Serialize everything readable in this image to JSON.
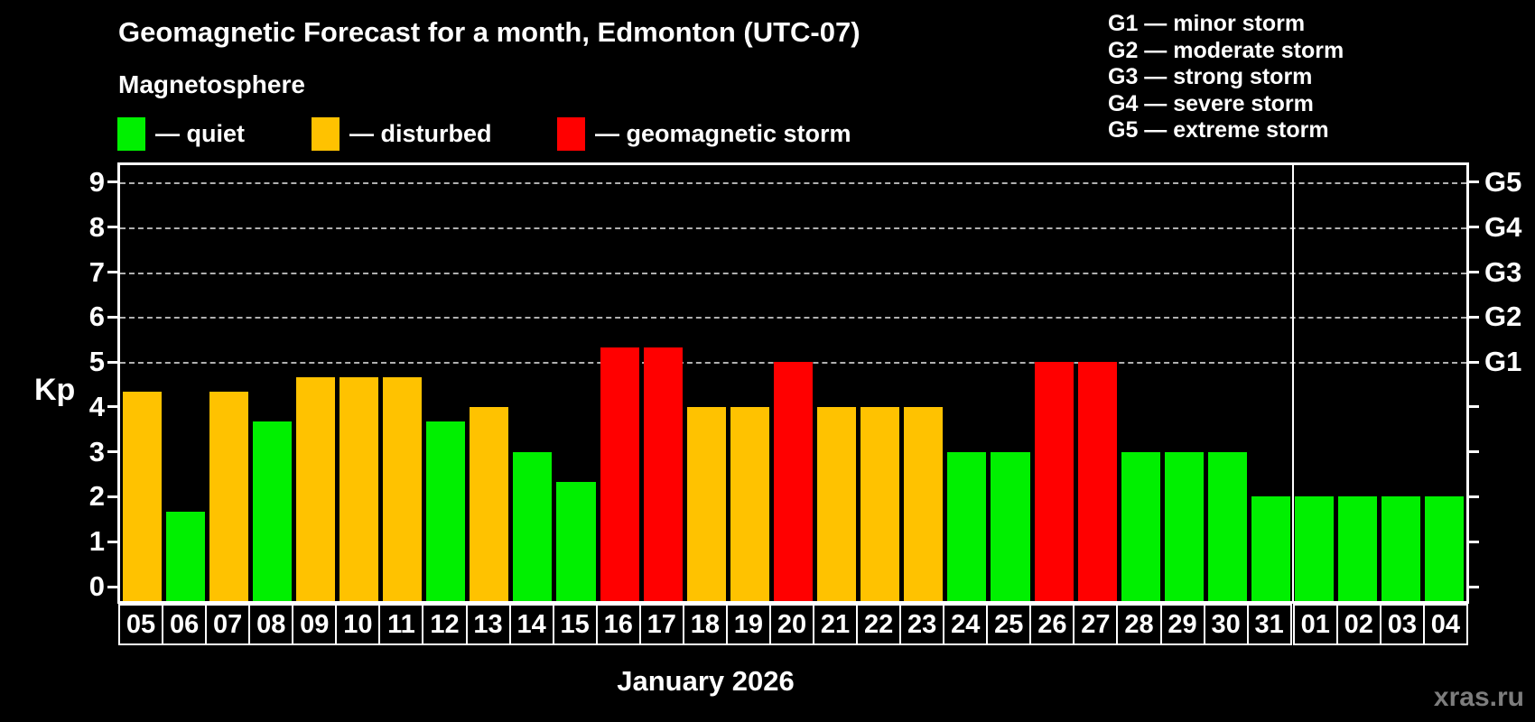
{
  "header": {
    "title": "Geomagnetic Forecast for a month, Edmonton (UTC-07)",
    "subtitle": "Magnetosphere"
  },
  "legend": {
    "items": [
      {
        "label": "— quiet",
        "status": "quiet"
      },
      {
        "label": "— disturbed",
        "status": "disturbed"
      },
      {
        "label": "— geomagnetic storm",
        "status": "storm"
      }
    ]
  },
  "storm_scale_legend": {
    "items": [
      "G1 — minor storm",
      "G2 — moderate storm",
      "G3 — strong storm",
      "G4 — severe storm",
      "G5 — extreme storm"
    ]
  },
  "colors": {
    "quiet": "#00f000",
    "disturbed": "#ffc200",
    "storm": "#ff0000",
    "background": "#000000",
    "axis": "#ffffff",
    "gridline": "#b0b0b0",
    "watermark": "#7d7d7d"
  },
  "chart_data": {
    "type": "bar",
    "title": "Geomagnetic Forecast for a month, Edmonton (UTC-07)",
    "ylabel": "Kp",
    "xlabel": "January 2026",
    "ylim": [
      0,
      9
    ],
    "yticks": [
      0,
      1,
      2,
      3,
      4,
      5,
      6,
      7,
      8,
      9
    ],
    "grid": "dashed horizontal lines at Kp 5-9 only",
    "right_axis": [
      {
        "kp": 5,
        "label": "G1"
      },
      {
        "kp": 6,
        "label": "G2"
      },
      {
        "kp": 7,
        "label": "G3"
      },
      {
        "kp": 8,
        "label": "G4"
      },
      {
        "kp": 9,
        "label": "G5"
      }
    ],
    "categories": [
      "05",
      "06",
      "07",
      "08",
      "09",
      "10",
      "11",
      "12",
      "13",
      "14",
      "15",
      "16",
      "17",
      "18",
      "19",
      "20",
      "21",
      "22",
      "23",
      "24",
      "25",
      "26",
      "27",
      "28",
      "29",
      "30",
      "31",
      "01",
      "02",
      "03",
      "04"
    ],
    "values": [
      4.33,
      1.67,
      4.33,
      3.67,
      4.67,
      4.67,
      4.67,
      3.67,
      4,
      3,
      2.33,
      5.33,
      5.33,
      4,
      4,
      5,
      4,
      4,
      4,
      3,
      3,
      5,
      5,
      3,
      3,
      3,
      2,
      2,
      2,
      2,
      2
    ],
    "statuses": [
      "disturbed",
      "quiet",
      "disturbed",
      "quiet",
      "disturbed",
      "disturbed",
      "disturbed",
      "quiet",
      "disturbed",
      "quiet",
      "quiet",
      "storm",
      "storm",
      "disturbed",
      "disturbed",
      "storm",
      "disturbed",
      "disturbed",
      "disturbed",
      "quiet",
      "quiet",
      "storm",
      "storm",
      "quiet",
      "quiet",
      "quiet",
      "quiet",
      "quiet",
      "quiet",
      "quiet",
      "quiet"
    ],
    "month_boundary_after_index": 26
  },
  "footer": {
    "month_label": "January 2026",
    "watermark": "xras.ru"
  }
}
